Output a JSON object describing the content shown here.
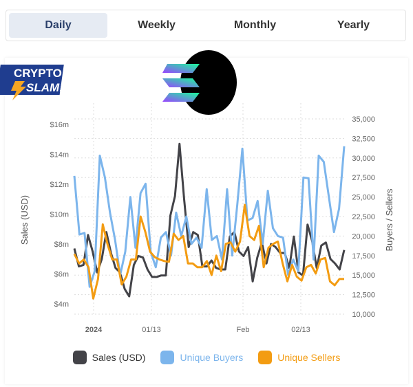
{
  "tabs": [
    {
      "label": "Daily",
      "active": true
    },
    {
      "label": "Weekly"
    },
    {
      "label": "Monthly"
    },
    {
      "label": "Yearly"
    }
  ],
  "logo_text": "CRYPTO SLAM!",
  "chart_data": {
    "type": "line",
    "y_left": {
      "label": "Sales (USD)",
      "ticks": [
        "$4m",
        "$6m",
        "$8m",
        "$10m",
        "$12m",
        "$14m",
        "$16m"
      ],
      "range": [
        4,
        16
      ]
    },
    "y_right": {
      "label": "Buyers / Sellers",
      "ticks": [
        "10,000",
        "12,500",
        "15,000",
        "17,500",
        "20,000",
        "22,500",
        "25,000",
        "27,500",
        "30,000",
        "32,500",
        "35,000"
      ],
      "range": [
        10000,
        35000
      ]
    },
    "x_ticks": [
      {
        "label": "2024",
        "bold": true,
        "day": 4
      },
      {
        "label": "01/13",
        "day": 16
      },
      {
        "label": "Feb",
        "day": 35
      },
      {
        "label": "02/13",
        "day": 47
      }
    ],
    "x_days": 57,
    "series": [
      {
        "name": "Sales (USD)",
        "axis": "left",
        "color": "#434348",
        "values": [
          7.7,
          6.5,
          6.6,
          8.6,
          7.5,
          6.1,
          7.0,
          8.8,
          7.4,
          6.4,
          6.1,
          5.0,
          4.5,
          6.6,
          7.2,
          7.1,
          6.3,
          5.8,
          5.8,
          5.9,
          5.9,
          9.9,
          11.2,
          14.7,
          11.0,
          7.8,
          8.8,
          8.6,
          6.5,
          6.5,
          6.9,
          6.4,
          6.3,
          6.3,
          8.5,
          8.8,
          7.5,
          7.2,
          7.8,
          5.5,
          7.1,
          8.1,
          6.7,
          8.0,
          7.8,
          7.4,
          7.4,
          6.4,
          8.5,
          6.1,
          5.9,
          9.3,
          8.2,
          6.4,
          7.9,
          8.1,
          7.0,
          6.7,
          6.3,
          7.6
        ]
      },
      {
        "name": "Unique Buyers",
        "axis": "right",
        "color": "#7cb5ec",
        "values": [
          27700,
          20200,
          20400,
          13500,
          15500,
          30300,
          27500,
          23000,
          19500,
          15000,
          18000,
          25000,
          18500,
          25500,
          26700,
          18000,
          16000,
          19800,
          20500,
          17500,
          23000,
          20000,
          22500,
          19000,
          19800,
          18500,
          26000,
          19500,
          20000,
          17000,
          26000,
          17500,
          24000,
          31200,
          22000,
          22300,
          24500,
          19000,
          25800,
          21000,
          20000,
          19800,
          15000,
          17000,
          15500,
          27500,
          27400,
          17000,
          30300,
          29500,
          25000,
          20500,
          23500,
          31500
        ]
      },
      {
        "name": "Unique Sellers",
        "axis": "right",
        "color": "#f39c12",
        "values": [
          17700,
          16500,
          17000,
          16000,
          12000,
          14500,
          21500,
          19000,
          17000,
          17000,
          13800,
          14800,
          17000,
          17000,
          22500,
          20500,
          18000,
          17300,
          17000,
          16800,
          16700,
          20300,
          19500,
          20000,
          16500,
          16500,
          16000,
          16000,
          16800,
          15000,
          17500,
          15500,
          19000,
          19200,
          18000,
          19300,
          24000,
          20000,
          19500,
          21300,
          16000,
          18500,
          19000,
          19300,
          16500,
          14200,
          16300,
          14800,
          14300,
          16000,
          16300,
          15200,
          17000,
          17200,
          14200,
          13700,
          14500,
          14500
        ]
      }
    ]
  }
}
